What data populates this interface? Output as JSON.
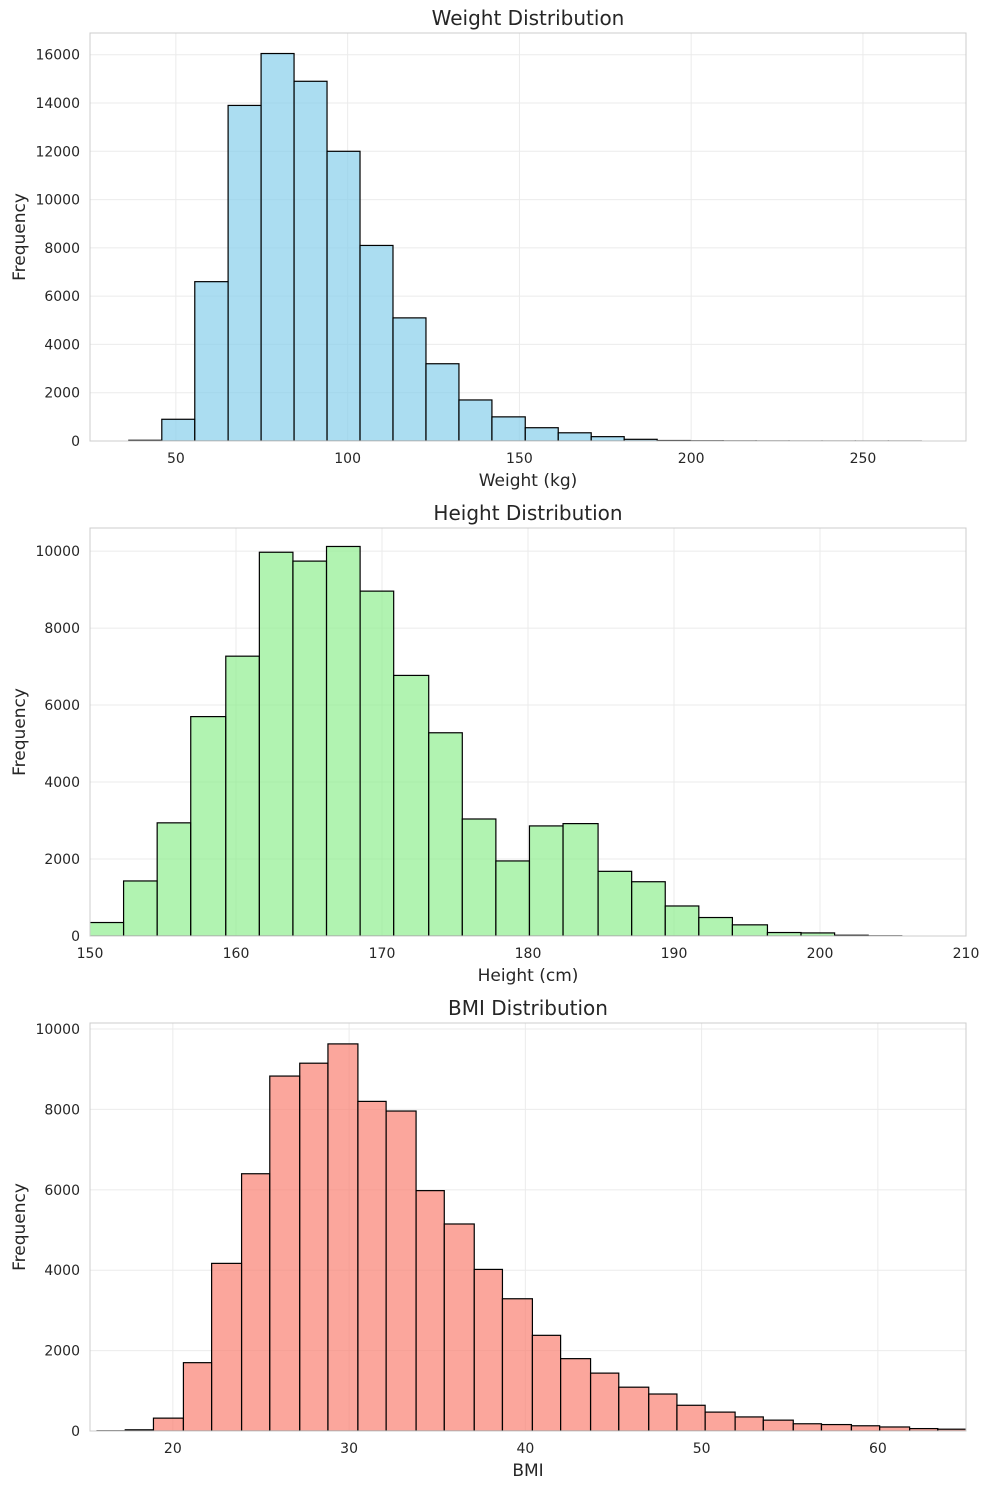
{
  "chart_data": [
    {
      "type": "bar",
      "title": "Weight Distribution",
      "xlabel": "Weight (kg)",
      "ylabel": "Frequency",
      "color": "#87ceeb",
      "xlim": [
        25,
        280
      ],
      "ylim": [
        0,
        16900
      ],
      "xticks": [
        50,
        100,
        150,
        200,
        250
      ],
      "yticks": [
        0,
        2000,
        4000,
        6000,
        8000,
        10000,
        12000,
        14000,
        16000
      ],
      "bins": [
        {
          "x0": 36.3,
          "x1": 45.9,
          "count": 30
        },
        {
          "x0": 45.9,
          "x1": 55.5,
          "count": 900
        },
        {
          "x0": 55.5,
          "x1": 65.2,
          "count": 6600
        },
        {
          "x0": 65.2,
          "x1": 74.8,
          "count": 13900
        },
        {
          "x0": 74.8,
          "x1": 84.4,
          "count": 16050
        },
        {
          "x0": 84.4,
          "x1": 94.0,
          "count": 14900
        },
        {
          "x0": 94.0,
          "x1": 103.6,
          "count": 12000
        },
        {
          "x0": 103.6,
          "x1": 113.2,
          "count": 8100
        },
        {
          "x0": 113.2,
          "x1": 122.8,
          "count": 5100
        },
        {
          "x0": 122.8,
          "x1": 132.4,
          "count": 3200
        },
        {
          "x0": 132.4,
          "x1": 142.0,
          "count": 1700
        },
        {
          "x0": 142.0,
          "x1": 151.7,
          "count": 1000
        },
        {
          "x0": 151.7,
          "x1": 161.3,
          "count": 550
        },
        {
          "x0": 161.3,
          "x1": 170.9,
          "count": 340
        },
        {
          "x0": 170.9,
          "x1": 180.5,
          "count": 180
        },
        {
          "x0": 180.5,
          "x1": 190.1,
          "count": 70
        },
        {
          "x0": 190.1,
          "x1": 199.7,
          "count": 20
        },
        {
          "x0": 199.7,
          "x1": 209.3,
          "count": 10
        },
        {
          "x0": 209.3,
          "x1": 218.9,
          "count": 5
        },
        {
          "x0": 218.9,
          "x1": 228.5,
          "count": 3
        },
        {
          "x0": 228.5,
          "x1": 238.1,
          "count": 1
        },
        {
          "x0": 238.1,
          "x1": 247.8,
          "count": 1
        },
        {
          "x0": 247.8,
          "x1": 257.4,
          "count": 1
        },
        {
          "x0": 257.4,
          "x1": 267.0,
          "count": 1
        }
      ]
    },
    {
      "type": "bar",
      "title": "Height Distribution",
      "xlabel": "Height (cm)",
      "ylabel": "Frequency",
      "color": "#90ee90",
      "xlim": [
        150,
        210
      ],
      "ylim": [
        0,
        10600
      ],
      "xticks": [
        150,
        160,
        170,
        180,
        190,
        200,
        210
      ],
      "yticks": [
        0,
        2000,
        4000,
        6000,
        8000,
        10000
      ],
      "bins": [
        {
          "x0": 147.7,
          "x1": 152.3,
          "count": 350
        },
        {
          "x0": 152.3,
          "x1": 154.6,
          "count": 1430
        },
        {
          "x0": 154.6,
          "x1": 156.9,
          "count": 2940
        },
        {
          "x0": 156.9,
          "x1": 159.3,
          "count": 5700
        },
        {
          "x0": 159.3,
          "x1": 161.6,
          "count": 7270
        },
        {
          "x0": 161.6,
          "x1": 163.9,
          "count": 9970
        },
        {
          "x0": 163.9,
          "x1": 166.2,
          "count": 9740
        },
        {
          "x0": 166.2,
          "x1": 168.5,
          "count": 10120
        },
        {
          "x0": 168.5,
          "x1": 170.8,
          "count": 8960
        },
        {
          "x0": 170.8,
          "x1": 173.2,
          "count": 6770
        },
        {
          "x0": 173.2,
          "x1": 175.5,
          "count": 5280
        },
        {
          "x0": 175.5,
          "x1": 177.8,
          "count": 3040
        },
        {
          "x0": 177.8,
          "x1": 180.1,
          "count": 1950
        },
        {
          "x0": 180.1,
          "x1": 182.4,
          "count": 2860
        },
        {
          "x0": 182.4,
          "x1": 184.8,
          "count": 2920
        },
        {
          "x0": 184.8,
          "x1": 187.1,
          "count": 1680
        },
        {
          "x0": 187.1,
          "x1": 189.4,
          "count": 1410
        },
        {
          "x0": 189.4,
          "x1": 191.7,
          "count": 780
        },
        {
          "x0": 191.7,
          "x1": 194.0,
          "count": 480
        },
        {
          "x0": 194.0,
          "x1": 196.4,
          "count": 290
        },
        {
          "x0": 196.4,
          "x1": 198.7,
          "count": 90
        },
        {
          "x0": 198.7,
          "x1": 201.0,
          "count": 80
        },
        {
          "x0": 201.0,
          "x1": 203.3,
          "count": 20
        },
        {
          "x0": 203.3,
          "x1": 205.6,
          "count": 5
        }
      ]
    },
    {
      "type": "bar",
      "title": "BMI Distribution",
      "xlabel": "BMI",
      "ylabel": "Frequency",
      "color": "#fa8072",
      "xlim": [
        15.3,
        65
      ],
      "ylim": [
        0,
        10150
      ],
      "xticks": [
        20,
        30,
        40,
        50,
        60
      ],
      "yticks": [
        0,
        2000,
        4000,
        6000,
        8000,
        10000
      ],
      "bins": [
        {
          "x0": 15.7,
          "x1": 17.3,
          "count": 5
        },
        {
          "x0": 17.3,
          "x1": 18.9,
          "count": 30
        },
        {
          "x0": 18.9,
          "x1": 20.6,
          "count": 320
        },
        {
          "x0": 20.6,
          "x1": 22.2,
          "count": 1700
        },
        {
          "x0": 22.2,
          "x1": 23.9,
          "count": 4170
        },
        {
          "x0": 23.9,
          "x1": 25.5,
          "count": 6400
        },
        {
          "x0": 25.5,
          "x1": 27.2,
          "count": 8830
        },
        {
          "x0": 27.2,
          "x1": 28.8,
          "count": 9150
        },
        {
          "x0": 28.8,
          "x1": 30.5,
          "count": 9630
        },
        {
          "x0": 30.5,
          "x1": 32.1,
          "count": 8200
        },
        {
          "x0": 32.1,
          "x1": 33.8,
          "count": 7960
        },
        {
          "x0": 33.8,
          "x1": 35.4,
          "count": 5980
        },
        {
          "x0": 35.4,
          "x1": 37.1,
          "count": 5150
        },
        {
          "x0": 37.1,
          "x1": 38.7,
          "count": 4020
        },
        {
          "x0": 38.7,
          "x1": 40.4,
          "count": 3290
        },
        {
          "x0": 40.4,
          "x1": 42.0,
          "count": 2380
        },
        {
          "x0": 42.0,
          "x1": 43.7,
          "count": 1800
        },
        {
          "x0": 43.7,
          "x1": 45.3,
          "count": 1440
        },
        {
          "x0": 45.3,
          "x1": 47.0,
          "count": 1090
        },
        {
          "x0": 47.0,
          "x1": 48.6,
          "count": 920
        },
        {
          "x0": 48.6,
          "x1": 50.2,
          "count": 640
        },
        {
          "x0": 50.2,
          "x1": 51.9,
          "count": 470
        },
        {
          "x0": 51.9,
          "x1": 53.5,
          "count": 350
        },
        {
          "x0": 53.5,
          "x1": 55.2,
          "count": 270
        },
        {
          "x0": 55.2,
          "x1": 56.8,
          "count": 180
        },
        {
          "x0": 56.8,
          "x1": 58.5,
          "count": 160
        },
        {
          "x0": 58.5,
          "x1": 60.1,
          "count": 130
        },
        {
          "x0": 60.1,
          "x1": 61.8,
          "count": 100
        },
        {
          "x0": 61.8,
          "x1": 63.4,
          "count": 60
        },
        {
          "x0": 63.4,
          "x1": 65.1,
          "count": 45
        }
      ]
    }
  ]
}
